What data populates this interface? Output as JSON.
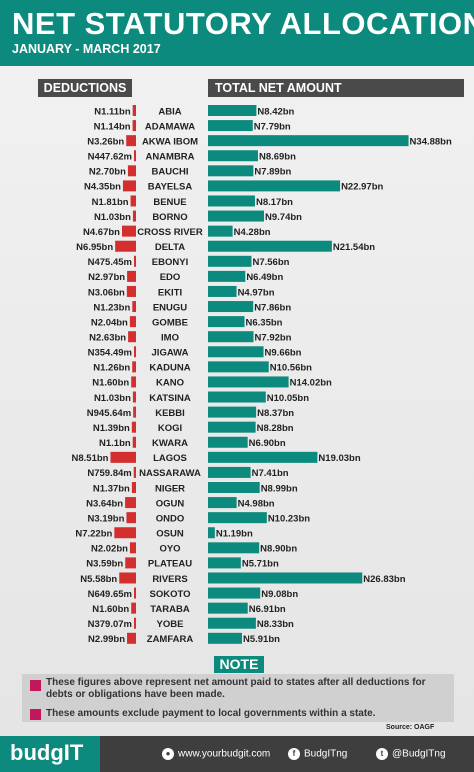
{
  "header": {
    "title": "NET STATUTORY ALLOCATION",
    "subtitle": "JANUARY - MARCH 2017"
  },
  "columns": {
    "deductions": "DEDUCTIONS",
    "net": "TOTAL NET AMOUNT"
  },
  "colors": {
    "teal": "#0d8a7e",
    "red": "#d32f2f",
    "magenta": "#c2185b",
    "dark": "#3e3e3e"
  },
  "chart_data": {
    "type": "bar",
    "categories": [
      "ABIA",
      "ADAMAWA",
      "AKWA IBOM",
      "ANAMBRA",
      "BAUCHI",
      "BAYELSA",
      "BENUE",
      "BORNO",
      "CROSS RIVER",
      "DELTA",
      "EBONYI",
      "EDO",
      "EKITI",
      "ENUGU",
      "GOMBE",
      "IMO",
      "JIGAWA",
      "KADUNA",
      "KANO",
      "KATSINA",
      "KEBBI",
      "KOGI",
      "KWARA",
      "LAGOS",
      "NASSARAWA",
      "NIGER",
      "OGUN",
      "ONDO",
      "OSUN",
      "OYO",
      "PLATEAU",
      "RIVERS",
      "SOKOTO",
      "TARABA",
      "YOBE",
      "ZAMFARA"
    ],
    "series": [
      {
        "name": "DEDUCTIONS",
        "values": [
          1.11,
          1.14,
          3.26,
          0.44762,
          2.7,
          4.35,
          1.81,
          1.03,
          4.67,
          6.95,
          0.47545,
          2.97,
          3.06,
          1.23,
          2.04,
          2.63,
          0.35449,
          1.26,
          1.6,
          1.03,
          0.94564,
          1.39,
          1.1,
          8.51,
          0.75984,
          1.37,
          3.64,
          3.19,
          7.22,
          2.02,
          3.59,
          5.58,
          0.64965,
          1.6,
          0.37907,
          2.99
        ],
        "labels": [
          "N1.11bn",
          "N1.14bn",
          "N3.26bn",
          "N447.62m",
          "N2.70bn",
          "N4.35bn",
          "N1.81bn",
          "N1.03bn",
          "N4.67bn",
          "N6.95bn",
          "N475.45m",
          "N2.97bn",
          "N3.06bn",
          "N1.23bn",
          "N2.04bn",
          "N2.63bn",
          "N354.49m",
          "N1.26bn",
          "N1.60bn",
          "N1.03bn",
          "N945.64m",
          "N1.39bn",
          "N1.1bn",
          "N8.51bn",
          "N759.84m",
          "N1.37bn",
          "N3.64bn",
          "N3.19bn",
          "N7.22bn",
          "N2.02bn",
          "N3.59bn",
          "N5.58bn",
          "N649.65m",
          "N1.60bn",
          "N379.07m",
          "N2.99bn"
        ]
      },
      {
        "name": "TOTAL NET AMOUNT",
        "values": [
          8.42,
          7.79,
          34.88,
          8.69,
          7.89,
          22.97,
          8.17,
          9.74,
          4.28,
          21.54,
          7.56,
          6.49,
          4.97,
          7.86,
          6.35,
          7.92,
          9.66,
          10.56,
          14.02,
          10.05,
          8.37,
          8.28,
          6.9,
          19.03,
          7.41,
          8.99,
          4.98,
          10.23,
          1.19,
          8.9,
          5.71,
          26.83,
          9.08,
          6.91,
          8.33,
          5.91
        ],
        "labels": [
          "N8.42bn",
          "N7.79bn",
          "N34.88bn",
          "N8.69bn",
          "N7.89bn",
          "N22.97bn",
          "N8.17bn",
          "N9.74bn",
          "N4.28bn",
          "N21.54bn",
          "N7.56bn",
          "N6.49bn",
          "N4.97bn",
          "N7.86bn",
          "N6.35bn",
          "N7.92bn",
          "N9.66bn",
          "N10.56bn",
          "N14.02bn",
          "N10.05bn",
          "N8.37bn",
          "N8.28bn",
          "N6.90bn",
          "N19.03bn",
          "N7.41bn",
          "N8.99bn",
          "N4.98bn",
          "N10.23bn",
          "N1.19bn",
          "N8.90bn",
          "N5.71bn",
          "N26.83bn",
          "N9.08bn",
          "N6.91bn",
          "N8.33bn",
          "N5.91bn"
        ]
      }
    ]
  },
  "note": {
    "heading": "NOTE",
    "line1a": "These figures above represent net amount paid to states after all deductions for",
    "line1b": "debts or obligations have been made.",
    "line2": "These amounts exclude payment to local governments within a state."
  },
  "source": "Source: OAGF",
  "footer": {
    "logo": "budgIT",
    "website": "www.yourbudgit.com",
    "facebook": "BudgITng",
    "twitter": "@BudgITng",
    "icons": [
      "globe-icon",
      "facebook-icon",
      "twitter-icon"
    ]
  }
}
